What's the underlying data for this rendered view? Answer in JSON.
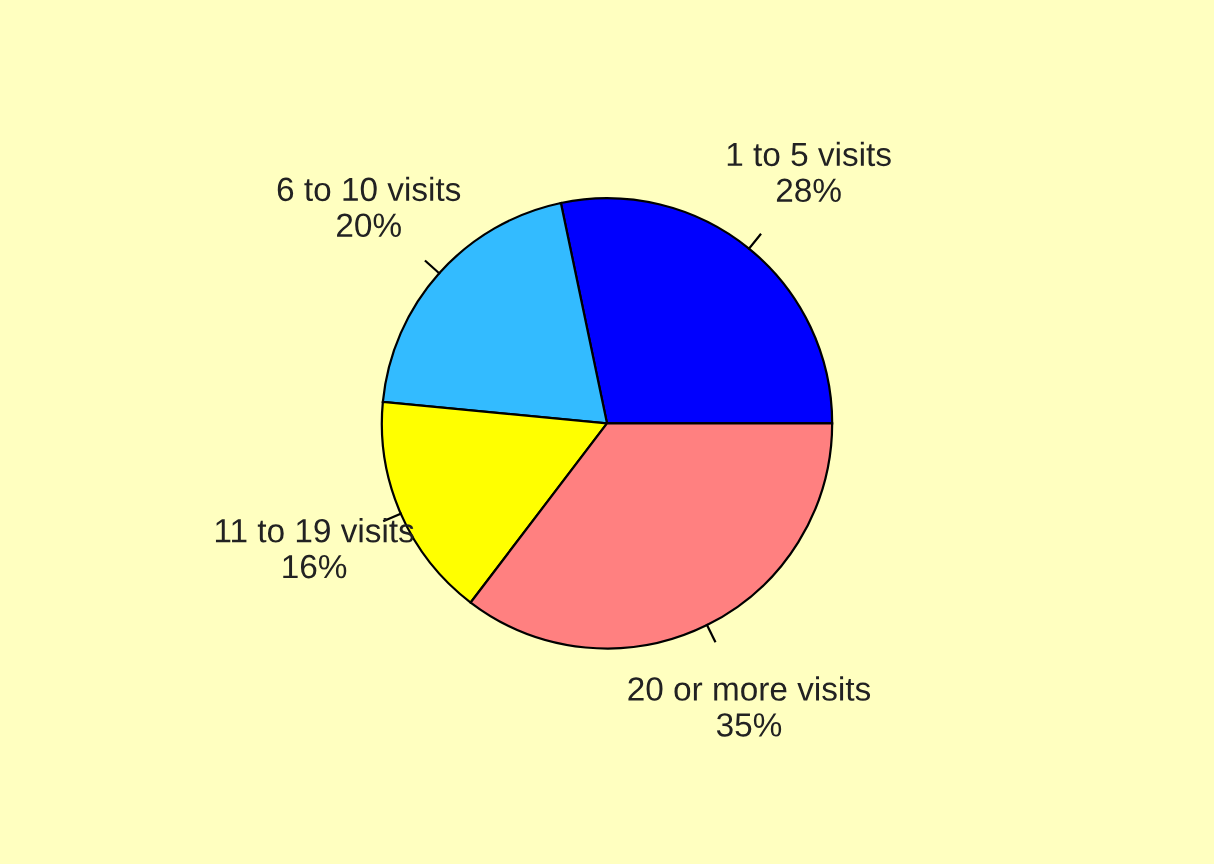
{
  "chart_data": {
    "type": "pie",
    "categories": [
      "1 to 5 visits",
      "6 to 10 visits",
      "11 to 19 visits",
      "20 or more visits"
    ],
    "values": [
      28,
      20,
      16,
      35
    ],
    "colors": [
      "#0000ff",
      "#33bbff",
      "#ffff00",
      "#ff8080"
    ],
    "value_labels": [
      "28%",
      "20%",
      "16%",
      "35%"
    ],
    "legend": false
  }
}
